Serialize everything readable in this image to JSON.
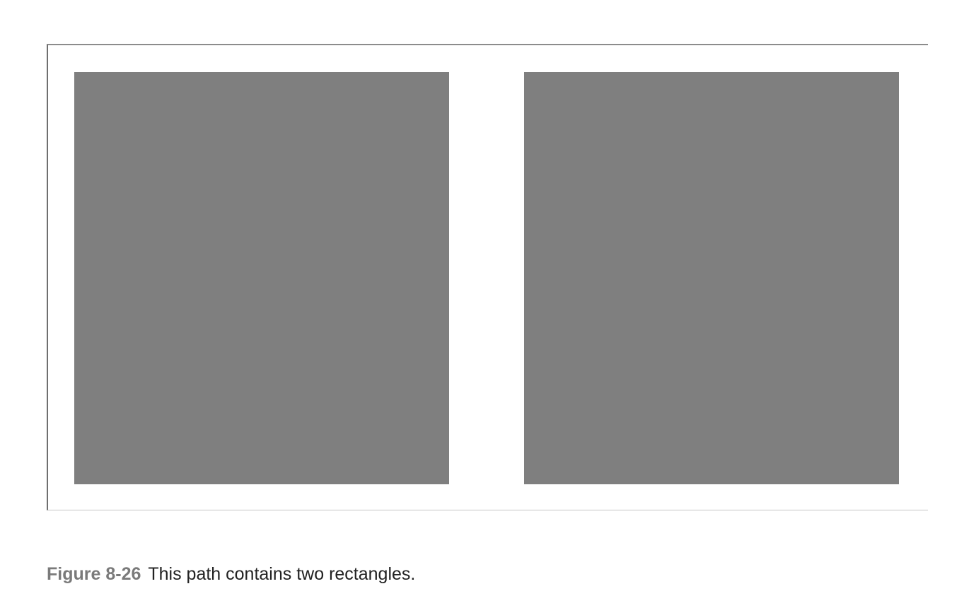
{
  "figure": {
    "label": "Figure 8-26",
    "caption_text": "This path contains two rectangles.",
    "rectangle_fill_color": "#7f7f7f",
    "background_color": "#ffffff"
  }
}
